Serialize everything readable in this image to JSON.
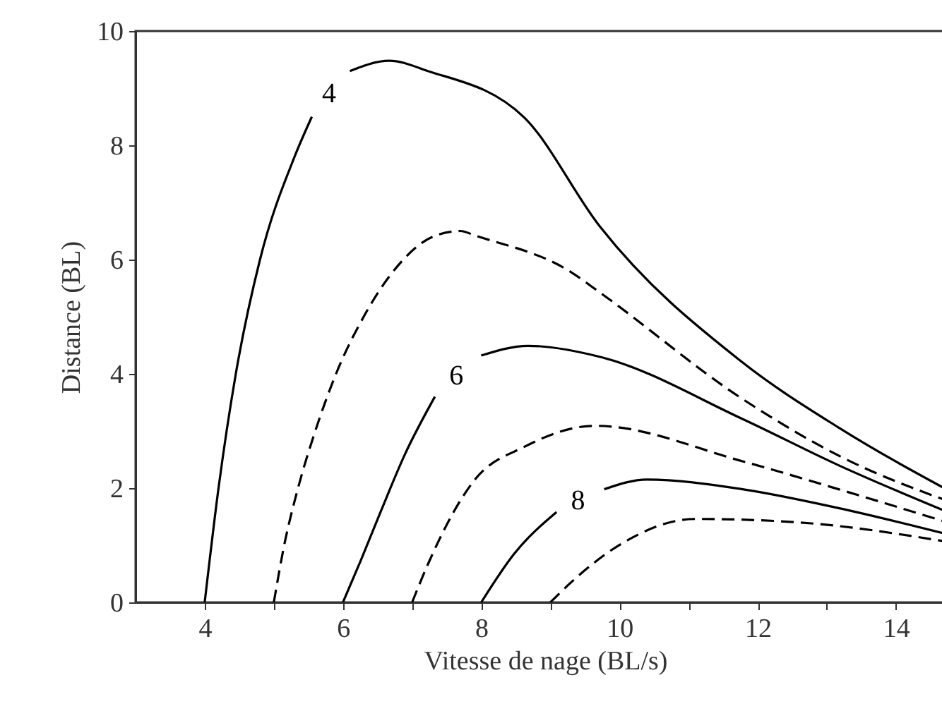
{
  "chart_data": {
    "type": "line",
    "xlabel": "Vitesse de nage (BL/s)",
    "ylabel": "Distance (BL)",
    "xlim": [
      3,
      14.85
    ],
    "ylim": [
      0,
      10
    ],
    "xticks": [
      4,
      {
        "value": 5,
        "label": null
      },
      6,
      {
        "value": 7,
        "label": null
      },
      8,
      {
        "value": 9,
        "label": null
      },
      10,
      {
        "value": 11,
        "label": null
      },
      12,
      {
        "value": 13,
        "label": null
      },
      14
    ],
    "yticks": [
      0,
      2,
      4,
      6,
      8,
      10
    ],
    "grid": false,
    "marker": "none",
    "series": [
      {
        "name": "4",
        "color": "#000000",
        "line_style": "solid",
        "x": [
          4,
          4.2,
          4.45,
          4.8,
          5.3,
          5.55,
          5.8,
          6.1,
          6.67,
          7.23,
          8.62,
          9.71,
          11.78,
          13.17,
          14.85
        ],
        "values": [
          0,
          2,
          4,
          6,
          7.8,
          8.5,
          null,
          9.3,
          9.48,
          9.3,
          8.49,
          6.59,
          4.2,
          3.06,
          1.9
        ]
      },
      {
        "color": "#000000",
        "line_style": "dashed",
        "x": [
          5,
          5.15,
          5.35,
          5.6,
          5.9,
          6.3,
          6.8,
          7.3,
          7.7,
          7.91,
          9.3,
          9.71,
          11.78,
          13.17,
          14.85
        ],
        "values": [
          0,
          1,
          2,
          3,
          4,
          5,
          5.9,
          6.4,
          6.5,
          6.42,
          5.78,
          5.43,
          3.56,
          2.57,
          1.73
        ]
      },
      {
        "name": "6",
        "color": "#000000",
        "line_style": "solid",
        "x": [
          6,
          6.26,
          6.55,
          6.9,
          7.33,
          7.64,
          8.0,
          8.68,
          9.71,
          11.78,
          13.17,
          14.85
        ],
        "values": [
          0,
          0.74,
          1.6,
          2.6,
          3.6,
          null,
          4.32,
          4.49,
          4.3,
          3.21,
          2.4,
          1.53
        ]
      },
      {
        "color": "#000000",
        "line_style": "dashed",
        "x": [
          7,
          7.23,
          7.91,
          8.62,
          9.65,
          11.78,
          13.17,
          14.85
        ],
        "values": [
          0,
          0.67,
          2.15,
          2.72,
          3.09,
          2.47,
          1.98,
          1.36
        ]
      },
      {
        "name": "8",
        "color": "#000000",
        "line_style": "solid",
        "x": [
          8,
          8.47,
          9.09,
          9.4,
          9.78,
          10.4,
          11.78,
          13.17,
          14.85
        ],
        "values": [
          0,
          0.84,
          1.58,
          null,
          1.98,
          2.15,
          1.98,
          1.65,
          1.16
        ]
      },
      {
        "color": "#000000",
        "line_style": "dashed",
        "x": [
          9,
          9.3,
          9.98,
          11.1,
          12.47,
          14.85
        ],
        "values": [
          0,
          0.35,
          0.99,
          1.46,
          1.41,
          1.04
        ]
      }
    ]
  }
}
